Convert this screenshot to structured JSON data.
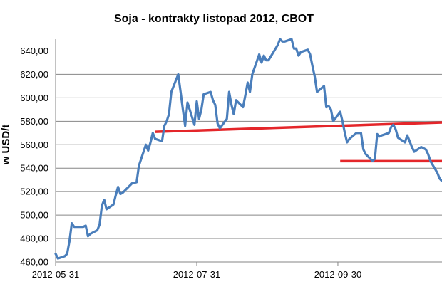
{
  "chart_data": {
    "type": "line",
    "title": "Soja - kontrakty listopad 2012, CBOT",
    "ylabel": "w USD/t",
    "xlabel": "",
    "ylim": [
      460,
      650
    ],
    "yticks": [
      460,
      480,
      500,
      520,
      540,
      560,
      580,
      600,
      620,
      640
    ],
    "ytick_labels": [
      "460,00",
      "480,00",
      "500,00",
      "520,00",
      "540,00",
      "560,00",
      "580,00",
      "600,00",
      "620,00",
      "640,00"
    ],
    "xlim": [
      "2012-05-31",
      "2012-11-14"
    ],
    "xticks": [
      "2012-05-31",
      "2012-07-31",
      "2012-09-30"
    ],
    "grid": true,
    "legend": "none",
    "series": [
      {
        "color": "#4a7ebb",
        "x": [
          "2012-05-31",
          "2012-06-01",
          "2012-06-04",
          "2012-06-05",
          "2012-06-06",
          "2012-06-07",
          "2012-06-08",
          "2012-06-11",
          "2012-06-12",
          "2012-06-13",
          "2012-06-14",
          "2012-06-15",
          "2012-06-18",
          "2012-06-19",
          "2012-06-20",
          "2012-06-21",
          "2012-06-22",
          "2012-06-25",
          "2012-06-26",
          "2012-06-27",
          "2012-06-28",
          "2012-06-29",
          "2012-07-02",
          "2012-07-03",
          "2012-07-05",
          "2012-07-06",
          "2012-07-09",
          "2012-07-10",
          "2012-07-11",
          "2012-07-12",
          "2012-07-13",
          "2012-07-16",
          "2012-07-17",
          "2012-07-18",
          "2012-07-19",
          "2012-07-20",
          "2012-07-23",
          "2012-07-24",
          "2012-07-25",
          "2012-07-26",
          "2012-07-27",
          "2012-07-30",
          "2012-07-31",
          "2012-08-01",
          "2012-08-02",
          "2012-08-03",
          "2012-08-06",
          "2012-08-07",
          "2012-08-08",
          "2012-08-09",
          "2012-08-10",
          "2012-08-13",
          "2012-08-14",
          "2012-08-15",
          "2012-08-16",
          "2012-08-17",
          "2012-08-20",
          "2012-08-21",
          "2012-08-22",
          "2012-08-23",
          "2012-08-24",
          "2012-08-27",
          "2012-08-28",
          "2012-08-29",
          "2012-08-30",
          "2012-08-31",
          "2012-09-04",
          "2012-09-05",
          "2012-09-06",
          "2012-09-07",
          "2012-09-10",
          "2012-09-11",
          "2012-09-12",
          "2012-09-13",
          "2012-09-14",
          "2012-09-17",
          "2012-09-18",
          "2012-09-19",
          "2012-09-20",
          "2012-09-21",
          "2012-09-24",
          "2012-09-25",
          "2012-09-26",
          "2012-09-27",
          "2012-09-28",
          "2012-10-01",
          "2012-10-02",
          "2012-10-03",
          "2012-10-04",
          "2012-10-05",
          "2012-10-08",
          "2012-10-09",
          "2012-10-10",
          "2012-10-11",
          "2012-10-12",
          "2012-10-15",
          "2012-10-16",
          "2012-10-17",
          "2012-10-18",
          "2012-10-19",
          "2012-10-22",
          "2012-10-23",
          "2012-10-24",
          "2012-10-25",
          "2012-10-26",
          "2012-10-29",
          "2012-10-30",
          "2012-10-31",
          "2012-11-01",
          "2012-11-02",
          "2012-11-05",
          "2012-11-06",
          "2012-11-07",
          "2012-11-08",
          "2012-11-09",
          "2012-11-12",
          "2012-11-13",
          "2012-11-14"
        ],
        "values": [
          467,
          463,
          465,
          467,
          478,
          493,
          490,
          490,
          490,
          491,
          482,
          484,
          487,
          492,
          508,
          513,
          505,
          509,
          517,
          524,
          518,
          519,
          525,
          527,
          528,
          542,
          560,
          555,
          562,
          570,
          565,
          563,
          576,
          580,
          586,
          605,
          620,
          605,
          590,
          576,
          596,
          577,
          597,
          582,
          590,
          603,
          605,
          598,
          594,
          578,
          574,
          582,
          605,
          594,
          586,
          598,
          592,
          602,
          613,
          605,
          620,
          637,
          630,
          636,
          632,
          632,
          645,
          650,
          648,
          648,
          650,
          642,
          642,
          636,
          639,
          641,
          637,
          627,
          618,
          605,
          610,
          592,
          593,
          590,
          580,
          588,
          580,
          570,
          562,
          565,
          570,
          570,
          570,
          556,
          552,
          546,
          548,
          569,
          567,
          568,
          570,
          575,
          577,
          573,
          566,
          562,
          568,
          563,
          558,
          554,
          558,
          557,
          556,
          552,
          546,
          536,
          531,
          529
        ]
      }
    ],
    "trendlines": [
      {
        "color": "#e4262a",
        "x": [
          "2012-07-13",
          "2012-11-14"
        ],
        "values": [
          571,
          579
        ]
      },
      {
        "color": "#e4262a",
        "x": [
          "2012-10-01",
          "2012-11-14"
        ],
        "values": [
          546,
          546
        ]
      }
    ]
  }
}
